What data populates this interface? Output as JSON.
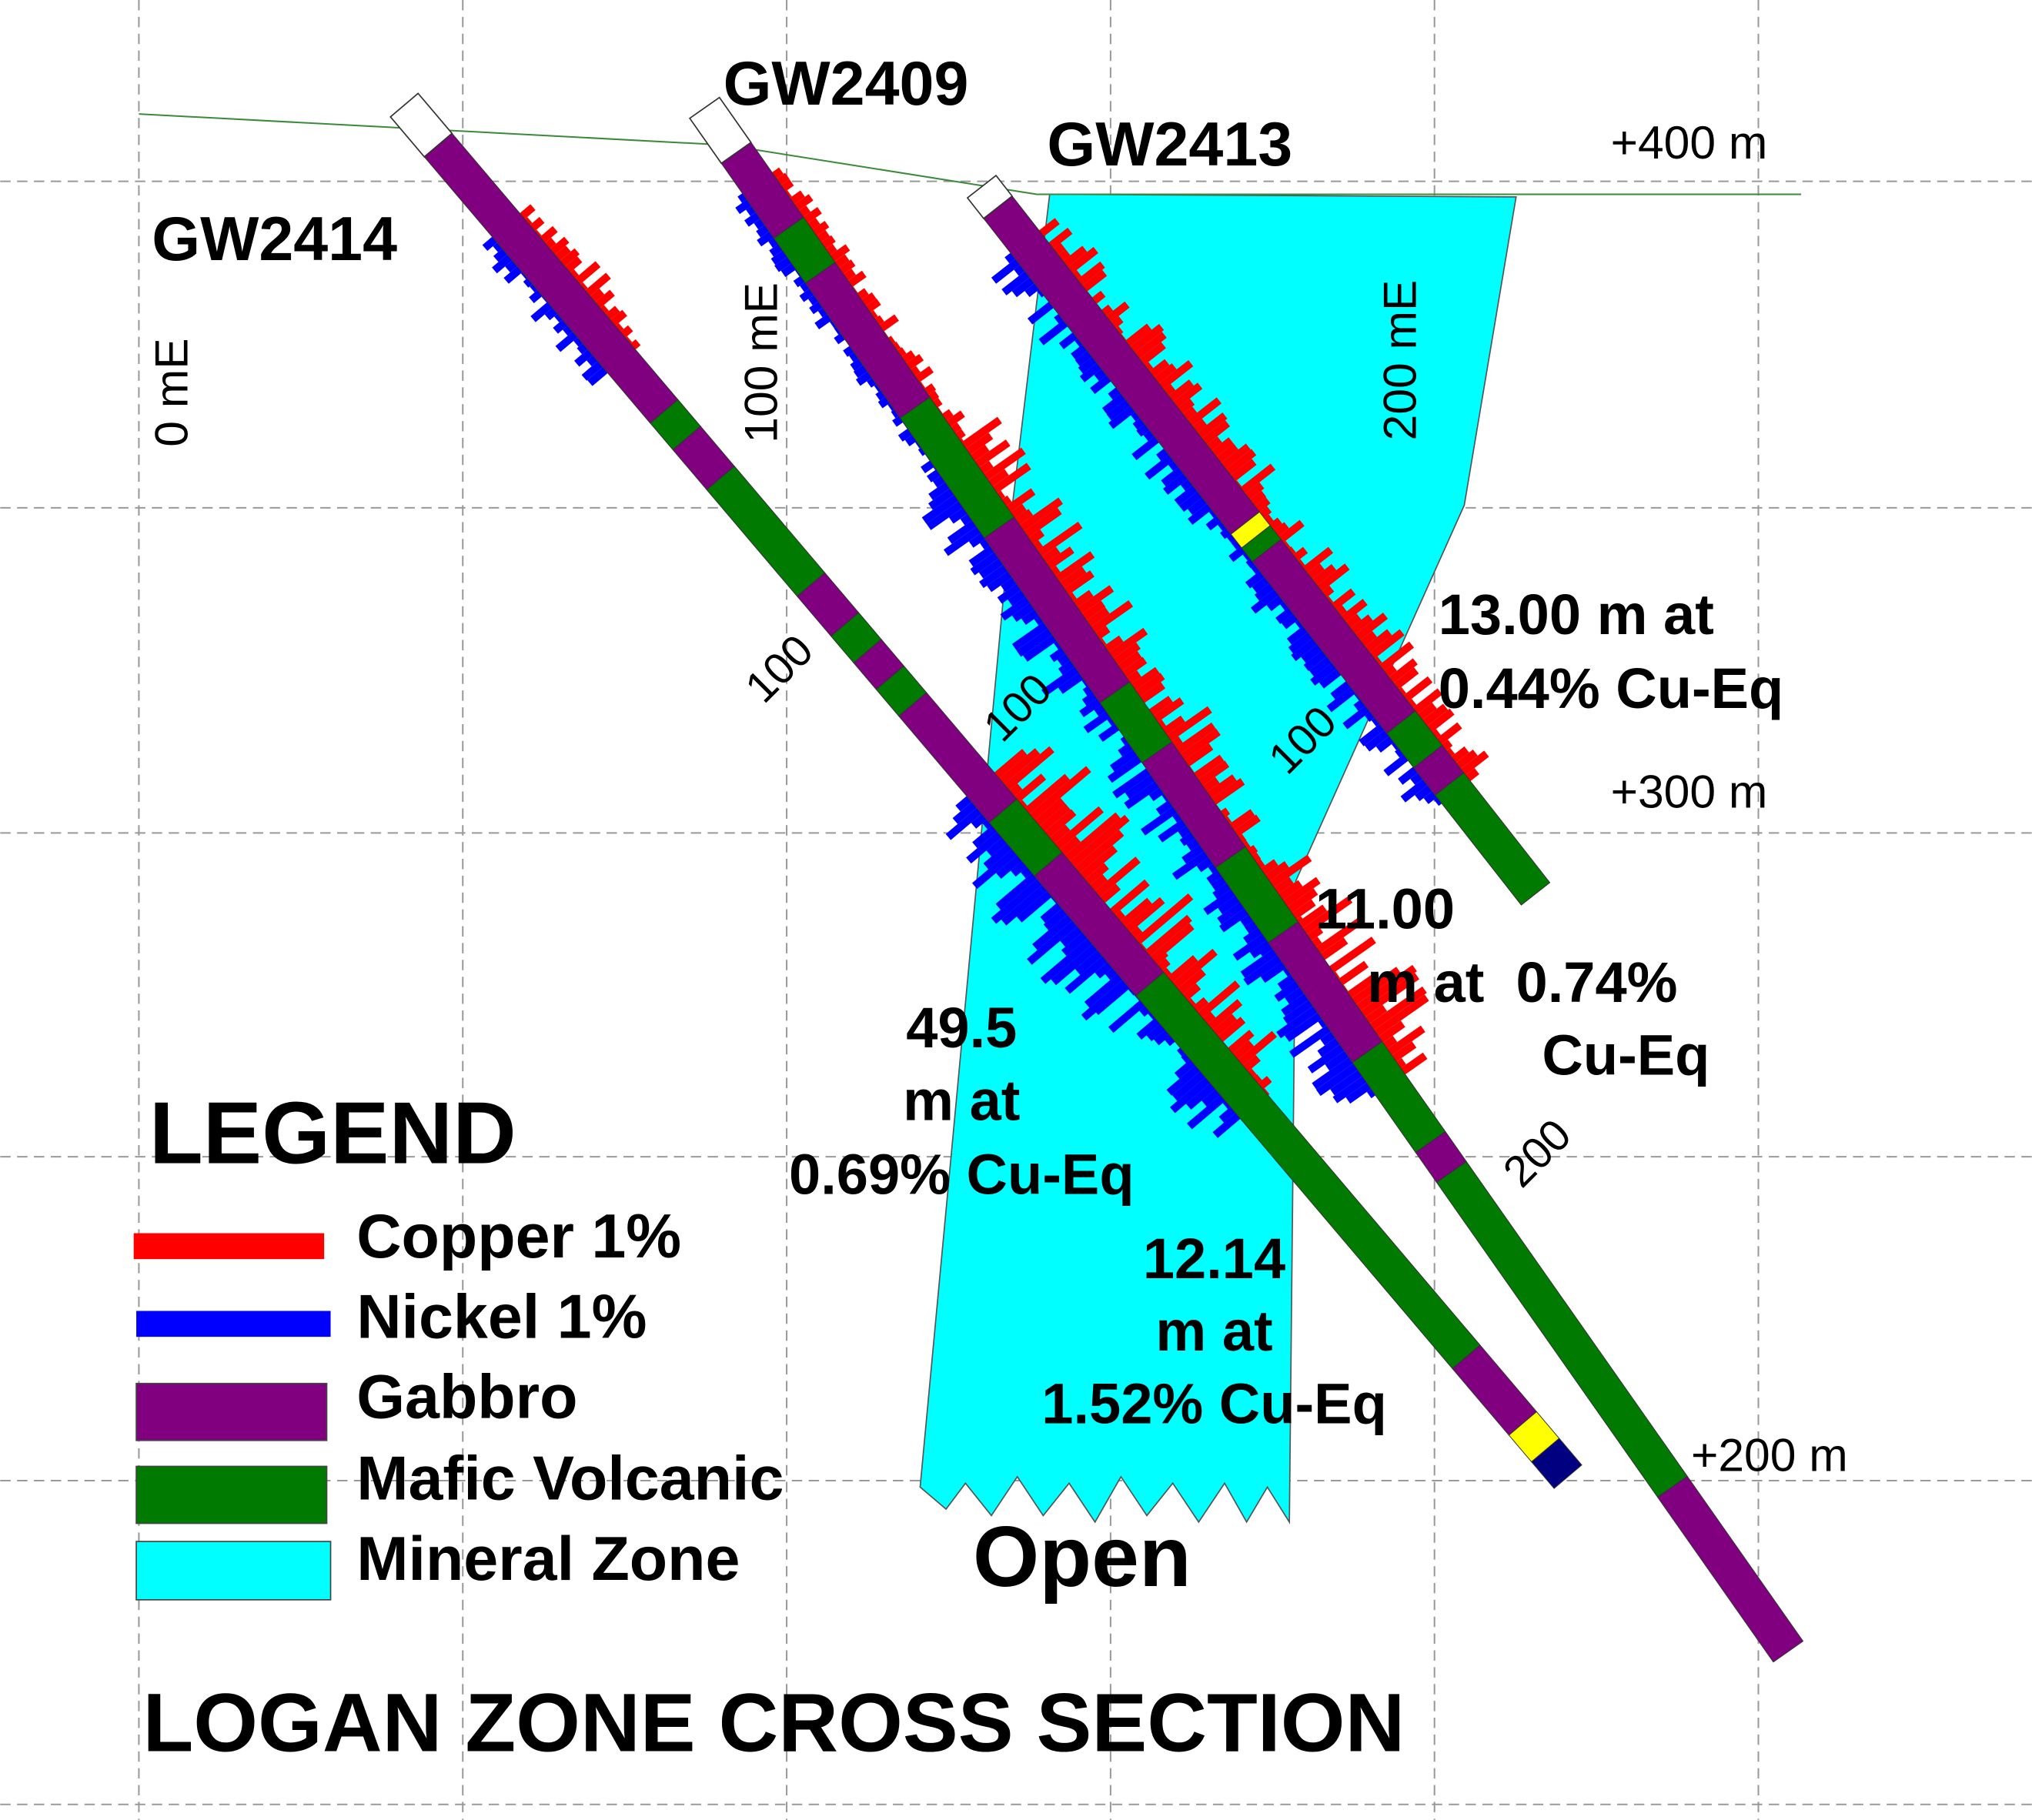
{
  "title": "LOGAN ZONE CROSS SECTION",
  "drill_holes": [
    "GW2414",
    "GW2409",
    "GW2413"
  ],
  "easting_labels": [
    "0 mE",
    "100 mE",
    "200 mE"
  ],
  "elevation_labels": [
    "+400 m",
    "+300 m",
    "+200 m"
  ],
  "depth_labels": [
    "100",
    "100",
    "100",
    "200"
  ],
  "intercepts": [
    {
      "lines": [
        "13.00 m at",
        "0.44% Cu-Eq"
      ]
    },
    {
      "lines": [
        "11.00",
        "m at  0.74%",
        "Cu-Eq"
      ]
    },
    {
      "lines": [
        "49.5",
        "m at",
        "0.69% Cu-Eq"
      ]
    },
    {
      "lines": [
        "12.14",
        "m at",
        "1.52% Cu-Eq"
      ]
    }
  ],
  "open_label": "Open",
  "legend": {
    "title": "LEGEND",
    "items": [
      "Copper 1%",
      "Nickel 1%",
      "Gabbro",
      "Mafic Volcanic",
      "Mineral Zone"
    ]
  }
}
